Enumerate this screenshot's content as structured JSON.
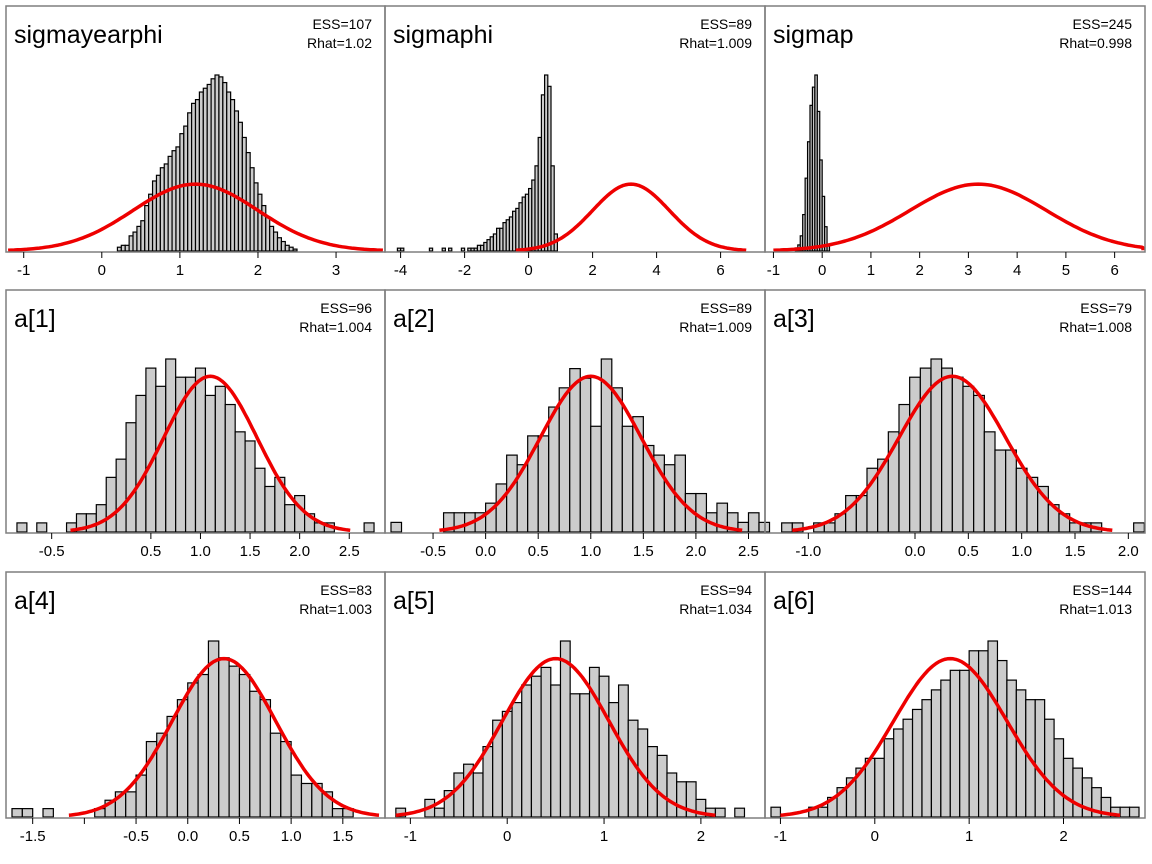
{
  "chart_data": [
    {
      "type": "bar",
      "title": "sigmayearphi",
      "ess": "ESS=107",
      "rhat": "Rhat=1.02",
      "xlim": [
        -1.15,
        3.55
      ],
      "ticks": [
        -1,
        0,
        1,
        2,
        3
      ],
      "tick_labels": [
        "-1",
        "0",
        "1",
        "2",
        "3"
      ],
      "bins": {
        "start": 0.2,
        "width": 0.05,
        "counts": [
          2,
          3,
          3,
          8,
          10,
          13,
          16,
          24,
          30,
          37,
          40,
          44,
          46,
          50,
          53,
          55,
          62,
          66,
          73,
          78,
          80,
          84,
          86,
          88,
          91,
          93,
          92,
          89,
          84,
          80,
          74,
          68,
          60,
          52,
          44,
          36,
          30,
          24,
          18,
          13,
          10,
          7,
          5,
          3,
          2,
          1
        ]
      },
      "curve": {
        "mean": 1.2,
        "sd": 0.8
      }
    },
    {
      "type": "bar",
      "title": "sigmaphi",
      "ess": "ESS=89",
      "rhat": "Rhat=1.009",
      "xlim": [
        -4.3,
        7.2
      ],
      "ticks": [
        -4,
        -2,
        0,
        2,
        4,
        6
      ],
      "tick_labels": [
        "-4",
        "-2",
        "0",
        "2",
        "4",
        "6"
      ],
      "bins": {
        "start": -4.1,
        "width": 0.1,
        "counts": [
          1,
          1,
          0,
          0,
          0,
          0,
          0,
          0,
          0,
          0,
          1,
          0,
          0,
          0,
          1,
          0,
          1,
          0,
          0,
          0,
          1,
          0,
          1,
          1,
          1,
          2,
          2,
          3,
          4,
          5,
          6,
          8,
          8,
          10,
          11,
          12,
          14,
          15,
          17,
          19,
          20,
          22,
          25,
          30,
          40,
          55,
          62,
          58,
          30,
          6
        ]
      },
      "curve": {
        "mean": 3.2,
        "sd": 1.2
      }
    },
    {
      "type": "bar",
      "title": "sigmap",
      "ess": "ESS=245",
      "rhat": "Rhat=0.998",
      "xlim": [
        -1.05,
        6.5
      ],
      "ticks": [
        -1,
        0,
        1,
        2,
        3,
        4,
        5,
        6
      ],
      "tick_labels": [
        "-1",
        "0",
        "1",
        "2",
        "3",
        "4",
        "5",
        "6"
      ],
      "bins": {
        "start": -0.55,
        "width": 0.05,
        "counts": [
          1,
          2,
          5,
          12,
          24,
          36,
          48,
          54,
          58,
          46,
          30,
          18,
          8,
          2
        ]
      },
      "curve": {
        "mean": 3.2,
        "sd": 1.4
      }
    },
    {
      "type": "bar",
      "title": "a[1]",
      "ess": "ESS=96",
      "rhat": "Rhat=1.004",
      "xlim": [
        -0.9,
        2.8
      ],
      "ticks": [
        -0.5,
        0.5,
        1,
        1.5,
        2,
        2.5
      ],
      "tick_labels": [
        "-0.5",
        "0.5",
        "1.0",
        "1.5",
        "2.0",
        "2.5"
      ],
      "bins": {
        "start": -0.85,
        "width": 0.1,
        "counts": [
          1,
          0,
          1,
          0,
          0,
          1,
          2,
          2,
          3,
          6,
          8,
          12,
          15,
          18,
          16,
          19,
          17,
          17,
          18,
          15,
          16,
          14,
          11,
          10,
          7,
          5,
          6,
          3,
          4,
          2,
          1,
          1,
          0,
          0,
          0,
          1
        ]
      },
      "curve": {
        "mean": 1.1,
        "sd": 0.47
      }
    },
    {
      "type": "bar",
      "title": "a[2]",
      "ess": "ESS=89",
      "rhat": "Rhat=1.009",
      "xlim": [
        -0.9,
        2.6
      ],
      "ticks": [
        -0.5,
        0,
        0.5,
        1,
        1.5,
        2,
        2.5
      ],
      "tick_labels": [
        "-0.5",
        "0.0",
        "0.5",
        "1.0",
        "1.5",
        "2.0",
        "2.5"
      ],
      "bins": {
        "start": -0.9,
        "width": 0.1,
        "counts": [
          1,
          0,
          0,
          0,
          0,
          2,
          2,
          2,
          2,
          3,
          5,
          8,
          7,
          10,
          10,
          13,
          15,
          17,
          16,
          11,
          18,
          15,
          11,
          12,
          9,
          8,
          7,
          8,
          4,
          4,
          2,
          3,
          2,
          1,
          2,
          1
        ]
      },
      "curve": {
        "mean": 1.0,
        "sd": 0.48
      }
    },
    {
      "type": "bar",
      "title": "a[3]",
      "ess": "ESS=79",
      "rhat": "Rhat=1.008",
      "xlim": [
        -1.35,
        2.1
      ],
      "ticks": [
        -1,
        0,
        0.5,
        1,
        1.5,
        2
      ],
      "tick_labels": [
        "-1.0",
        "0.0",
        "0.5",
        "1.0",
        "1.5",
        "2.0"
      ],
      "bins": {
        "start": -1.25,
        "width": 0.1,
        "counts": [
          1,
          1,
          0,
          1,
          1,
          2,
          4,
          4,
          7,
          8,
          11,
          14,
          17,
          18,
          19,
          18,
          17,
          16,
          15,
          11,
          9,
          9,
          7,
          6,
          5,
          3,
          2,
          1,
          1,
          1,
          0,
          0,
          0,
          1
        ]
      },
      "curve": {
        "mean": 0.35,
        "sd": 0.5
      }
    },
    {
      "type": "bar",
      "title": "a[4]",
      "ess": "ESS=83",
      "rhat": "Rhat=1.003",
      "xlim": [
        -1.7,
        1.85
      ],
      "ticks": [
        -1.5,
        -1,
        -0.5,
        0,
        0.5,
        1,
        1.5
      ],
      "tick_labels": [
        "-1.5",
        "",
        "-0.5",
        "0.0",
        "0.5",
        "1.0",
        "1.5"
      ],
      "bins": {
        "start": -1.7,
        "width": 0.1,
        "counts": [
          1,
          1,
          0,
          1,
          0,
          0,
          0,
          0,
          1,
          2,
          3,
          3,
          5,
          9,
          10,
          12,
          14,
          16,
          17,
          21,
          19,
          18,
          17,
          15,
          14,
          10,
          9,
          5,
          4,
          4,
          3,
          1,
          1
        ]
      },
      "curve": {
        "mean": 0.35,
        "sd": 0.5
      }
    },
    {
      "type": "bar",
      "title": "a[5]",
      "ess": "ESS=94",
      "rhat": "Rhat=1.034",
      "xlim": [
        -1.2,
        2.6
      ],
      "ticks": [
        -1,
        0,
        1,
        2
      ],
      "tick_labels": [
        "-1",
        "0",
        "1",
        "2"
      ],
      "bins": {
        "start": -1.15,
        "width": 0.1,
        "counts": [
          1,
          0,
          0,
          2,
          1,
          3,
          5,
          6,
          5,
          8,
          11,
          12,
          13,
          15,
          16,
          17,
          15,
          20,
          14,
          14,
          17,
          16,
          13,
          15,
          11,
          10,
          8,
          7,
          5,
          4,
          4,
          2,
          1,
          1,
          0,
          1
        ]
      },
      "curve": {
        "mean": 0.5,
        "sd": 0.55
      }
    },
    {
      "type": "bar",
      "title": "a[6]",
      "ess": "ESS=144",
      "rhat": "Rhat=1.013",
      "xlim": [
        -1.1,
        2.8
      ],
      "ticks": [
        -1,
        0,
        1,
        2
      ],
      "tick_labels": [
        "-1",
        "0",
        "1",
        "2"
      ],
      "bins": {
        "start": -1.1,
        "width": 0.1,
        "counts": [
          1,
          0,
          0,
          0,
          1,
          1,
          2,
          3,
          4,
          5,
          6,
          6,
          8,
          9,
          10,
          11,
          12,
          13,
          14,
          15,
          15,
          17,
          17,
          18,
          16,
          14,
          13,
          12,
          12,
          10,
          8,
          6,
          5,
          4,
          3,
          2,
          1,
          1,
          1
        ]
      },
      "curve": {
        "mean": 0.8,
        "sd": 0.6
      }
    }
  ]
}
